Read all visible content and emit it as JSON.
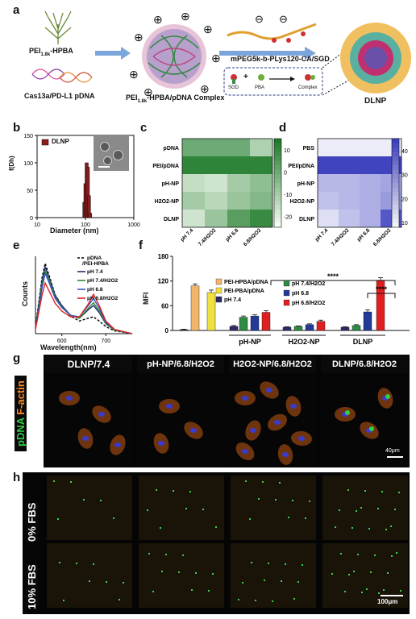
{
  "panels": {
    "a": "a",
    "b": "b",
    "c": "c",
    "d": "d",
    "e": "e",
    "f": "f",
    "g": "g",
    "h": "h"
  },
  "panel_a": {
    "pei_label_main": "PEI",
    "pei_label_sub": "1.8k",
    "pei_label_rest": "-HPBA",
    "dna_label": "Cas13a/PD-L1 pDNA",
    "complex_label_main": "PEI",
    "complex_label_sub": "1.8k",
    "complex_label_rest": "-HPBA/pDNA Complex",
    "polymer_label": "mPEG5k-b-PLys120-CA/SGD",
    "sgd_label": "SGD",
    "pba_label": "PBA",
    "complex_small_label": "Complex",
    "plus_sign": "+",
    "dlnp_label": "DLNP",
    "charge_plus": "⊕",
    "charge_minus": "⊖"
  },
  "panel_b": {
    "ylabel": "f(Dh)",
    "xlabel": "Diameter (nm)",
    "legend": "DLNP",
    "yticks": [
      "0",
      "50",
      "100",
      "150"
    ],
    "xticks": [
      "10",
      "100",
      "1000"
    ]
  },
  "panel_c": {
    "rows": [
      "pDNA",
      "PEI/pDNA",
      "pH-NP",
      "H2O2-NP",
      "DLNP"
    ],
    "cols": [
      "pH 7.4",
      "7.4/H2O2",
      "pH 6.8",
      "6.8/H2O2"
    ],
    "cbar_ticks": [
      "10",
      "0",
      "-10",
      "-20"
    ]
  },
  "panel_d": {
    "rows": [
      "PBS",
      "PEI/pDNA",
      "pH-NP",
      "H2O2-NP",
      "DLNP"
    ],
    "cols": [
      "pH 7.4",
      "7.4/H2O2",
      "pH 6.8",
      "6.8/H2O2"
    ],
    "cbar_ticks": [
      "40",
      "30",
      "20",
      "10"
    ]
  },
  "panel_e": {
    "ylabel": "Counts",
    "xlabel": "Wavelength(nm)",
    "xticks": [
      "600",
      "700"
    ],
    "legend": [
      "pDNA /PEI-HPBA",
      "pH 7.4",
      "pH 7.4/H2O2",
      "pH 6.8",
      "pH 6.8/H2O2"
    ]
  },
  "panel_f": {
    "ylabel": "MFI",
    "yticks": [
      "0",
      "60",
      "120",
      "180"
    ],
    "legend": [
      "PEI-HPBA/pDNA",
      "PEI-PBA/pDNA",
      "pH 7.4",
      "pH 7.4/H2O2",
      "pH 6.8",
      "pH 6.8/H2O2"
    ],
    "groups": [
      "pH-NP",
      "H2O2-NP",
      "DLNP"
    ],
    "sig": "****"
  },
  "panel_g": {
    "headers": [
      "DLNP/7.4",
      "pH-NP/6.8/H2O2",
      "H2O2-NP/6.8/H2O2",
      "DLNP/6.8/H2O2"
    ],
    "side_label_green": "pDNA",
    "side_label_orange": "F-actin",
    "scale": "40μm"
  },
  "panel_h": {
    "rows": [
      "0% FBS",
      "10% FBS"
    ],
    "scale": "100μm"
  },
  "chart_data": [
    {
      "type": "bar",
      "panel": "b",
      "legend": "DLNP",
      "xlabel": "Diameter (nm)",
      "ylabel": "f(Dh)",
      "x_scale": "log",
      "xlim": [
        10,
        1000
      ],
      "ylim": [
        0,
        150
      ],
      "x": [
        95,
        100,
        106,
        112,
        118,
        125
      ],
      "values": [
        28,
        62,
        100,
        92,
        40,
        8
      ]
    },
    {
      "type": "heatmap",
      "panel": "c",
      "rows": [
        "pDNA",
        "PEI/pDNA",
        "pH-NP",
        "H2O2-NP",
        "DLNP"
      ],
      "cols": [
        "pH 7.4",
        "7.4/H2O2",
        "pH 6.8",
        "6.8/H2O2"
      ],
      "values": [
        [
          0,
          0,
          0,
          -12
        ],
        [
          12,
          12,
          12,
          12
        ],
        [
          -16,
          -18,
          -10,
          -6
        ],
        [
          -10,
          -14,
          -8,
          -4
        ],
        [
          -18,
          -8,
          4,
          10
        ]
      ],
      "vmin": -25,
      "vmax": 15
    },
    {
      "type": "heatmap",
      "panel": "d",
      "rows": [
        "PBS",
        "PEI/pDNA",
        "pH-NP",
        "H2O2-NP",
        "DLNP"
      ],
      "cols": [
        "pH 7.4",
        "7.4/H2O2",
        "pH 6.8",
        "6.8/H2O2"
      ],
      "values": [
        [
          9,
          9,
          9,
          9
        ],
        [
          44,
          44,
          44,
          44
        ],
        [
          20,
          20,
          22,
          24
        ],
        [
          18,
          20,
          22,
          26
        ],
        [
          12,
          18,
          22,
          40
        ]
      ],
      "vmin": 8,
      "vmax": 45
    },
    {
      "type": "line",
      "panel": "e",
      "xlabel": "Wavelength(nm)",
      "ylabel": "Counts",
      "xlim": [
        540,
        760
      ],
      "series": [
        {
          "name": "pDNA /PEI-HPBA",
          "color": "#000000",
          "dashed": true,
          "x": [
            540,
            555,
            562,
            570,
            585,
            600,
            620,
            640,
            660,
            672,
            685,
            700,
            720,
            760
          ],
          "y": [
            10,
            80,
            100,
            85,
            55,
            40,
            25,
            18,
            22,
            24,
            18,
            10,
            4,
            0
          ]
        },
        {
          "name": "pH 7.4",
          "color": "#2a2870",
          "x": [
            540,
            555,
            562,
            570,
            585,
            600,
            620,
            640,
            660,
            672,
            685,
            700,
            720,
            760
          ],
          "y": [
            8,
            75,
            95,
            82,
            54,
            40,
            26,
            22,
            34,
            40,
            30,
            14,
            5,
            0
          ]
        },
        {
          "name": "pH 7.4/H2O2",
          "color": "#2e8b2e",
          "x": [
            540,
            555,
            562,
            570,
            585,
            600,
            620,
            640,
            660,
            672,
            685,
            700,
            720,
            760
          ],
          "y": [
            8,
            70,
            90,
            78,
            52,
            38,
            26,
            22,
            36,
            44,
            32,
            15,
            5,
            0
          ]
        },
        {
          "name": "pH 6.8",
          "color": "#3050c0",
          "x": [
            540,
            555,
            562,
            570,
            585,
            600,
            620,
            640,
            660,
            672,
            685,
            700,
            720,
            760
          ],
          "y": [
            7,
            65,
            86,
            74,
            50,
            37,
            26,
            24,
            40,
            50,
            36,
            16,
            6,
            0
          ]
        },
        {
          "name": "pH 6.8/H2O2",
          "color": "#e02020",
          "x": [
            540,
            555,
            562,
            570,
            585,
            600,
            620,
            640,
            660,
            672,
            685,
            700,
            720,
            760
          ],
          "y": [
            6,
            55,
            72,
            62,
            43,
            32,
            24,
            24,
            42,
            56,
            40,
            18,
            6,
            0
          ]
        }
      ]
    },
    {
      "type": "bar",
      "panel": "f",
      "ylabel": "MFI",
      "ylim": [
        0,
        180
      ],
      "bars": [
        {
          "value": 2,
          "color": "#222222",
          "err": 1
        },
        {
          "value": 108,
          "color": "#f2b66a",
          "err": 5
        },
        {
          "value": 92,
          "color": "#f0e040",
          "err": 6
        },
        {
          "value": 10,
          "color": "#2e2a68",
          "err": 2
        },
        {
          "value": 32,
          "color": "#2e8b44",
          "err": 3
        },
        {
          "value": 35,
          "color": "#233a98",
          "err": 3
        },
        {
          "value": 44,
          "color": "#e02020",
          "err": 4
        },
        {
          "value": 8,
          "color": "#2e2a68",
          "err": 1
        },
        {
          "value": 10,
          "color": "#2e8b44",
          "err": 1
        },
        {
          "value": 14,
          "color": "#233a98",
          "err": 2
        },
        {
          "value": 22,
          "color": "#e02020",
          "err": 3
        },
        {
          "value": 8,
          "color": "#2e2a68",
          "err": 1
        },
        {
          "value": 12,
          "color": "#2e8b44",
          "err": 2
        },
        {
          "value": 45,
          "color": "#233a98",
          "err": 5
        },
        {
          "value": 122,
          "color": "#e02020",
          "err": 6
        }
      ]
    }
  ]
}
